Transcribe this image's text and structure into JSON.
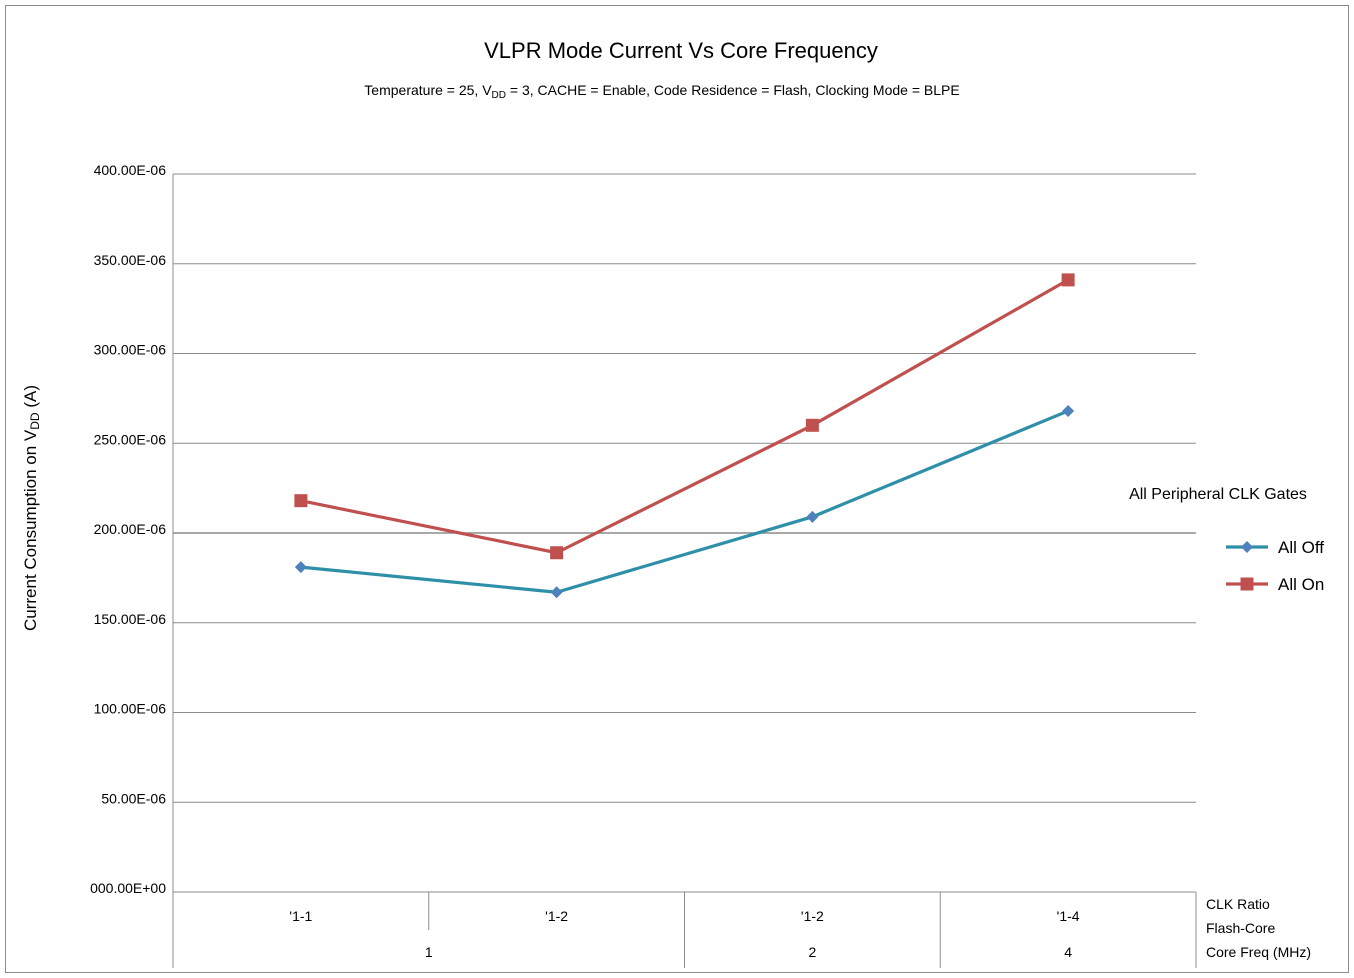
{
  "chart_data": {
    "type": "line",
    "title": "VLPR Mode Current Vs Core Frequency",
    "subtitle": {
      "prefix": "Temperature = 25, V",
      "sub": "DD",
      "suffix": " = 3, CACHE = Enable, Code Residence = Flash, Clocking Mode = BLPE"
    },
    "ylabel": {
      "prefix": "Current Consumption on V",
      "sub": "DD",
      "suffix": " (A)"
    },
    "ylim": [
      0,
      0.0004
    ],
    "yticks": [
      {
        "value": 0.0004,
        "label": "400.00E-06"
      },
      {
        "value": 0.00035,
        "label": "350.00E-06"
      },
      {
        "value": 0.0003,
        "label": "300.00E-06"
      },
      {
        "value": 0.00025,
        "label": "250.00E-06"
      },
      {
        "value": 0.0002,
        "label": "200.00E-06"
      },
      {
        "value": 0.00015,
        "label": "150.00E-06"
      },
      {
        "value": 0.0001,
        "label": "100.00E-06"
      },
      {
        "value": 5e-05,
        "label": "50.00E-06"
      },
      {
        "value": 0,
        "label": "000.00E+00"
      }
    ],
    "categories": [
      "'1-1",
      "'1-2",
      "'1-2",
      "'1-4"
    ],
    "group_labels": [
      {
        "label": "1",
        "span": [
          0,
          1
        ]
      },
      {
        "label": "2",
        "span": [
          2,
          2
        ]
      },
      {
        "label": "4",
        "span": [
          3,
          3
        ]
      }
    ],
    "axis_level_labels": [
      "CLK Ratio",
      "Flash-Core",
      "Core Freq (MHz)"
    ],
    "legend_title": "All Peripheral CLK Gates",
    "legend_position": "right",
    "grid": true,
    "series": [
      {
        "name": "All Off",
        "color": "#2e8fa8",
        "marker_color": "#4f81bd",
        "marker": "diamond",
        "values": [
          0.000181,
          0.000167,
          0.000209,
          0.000268
        ]
      },
      {
        "name": "All On",
        "color": "#c0504d",
        "marker_color": "#c0504d",
        "marker": "square",
        "values": [
          0.000218,
          0.000189,
          0.00026,
          0.000341
        ]
      }
    ]
  }
}
